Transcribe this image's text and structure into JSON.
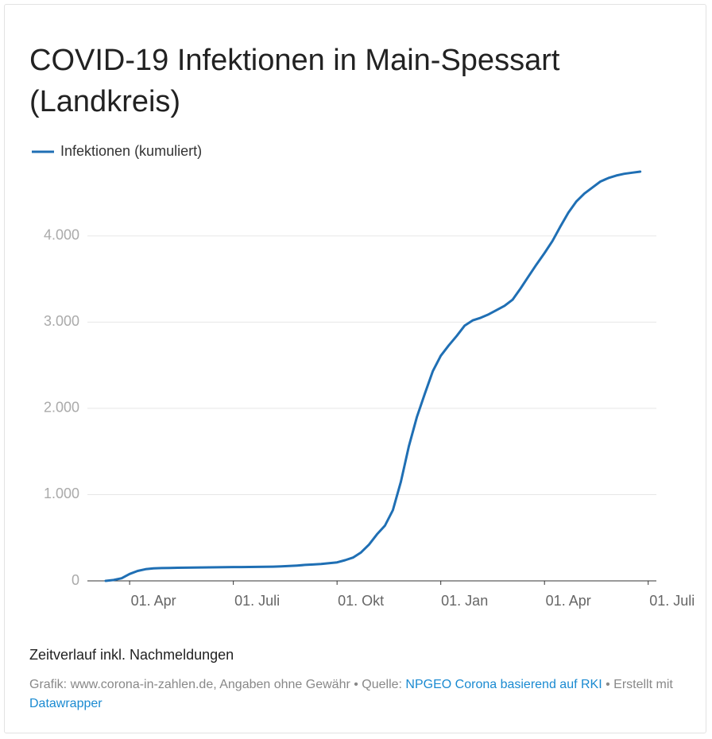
{
  "chart_data": {
    "type": "line",
    "title": "COVID-19 Infektionen in Main-Spessart (Landkreis)",
    "categories": [
      null,
      null,
      null,
      "01. Apr",
      null,
      null,
      null,
      null,
      null,
      null,
      null,
      null,
      null,
      null,
      null,
      null,
      "01. Juli",
      null,
      null,
      null,
      null,
      null,
      null,
      null,
      null,
      null,
      null,
      null,
      null,
      "01. Okt",
      null,
      null,
      null,
      null,
      null,
      null,
      null,
      null,
      null,
      null,
      null,
      null,
      "01. Jan",
      null,
      null,
      null,
      null,
      null,
      null,
      null,
      null,
      null,
      null,
      null,
      null,
      "01. Apr",
      null,
      null,
      null,
      null,
      null,
      null,
      null,
      null,
      null,
      null,
      null,
      null,
      "01. Juli"
    ],
    "series": [
      {
        "name": "Infektionen (kumuliert)",
        "color": "#1f6fb4",
        "values": [
          0,
          10,
          30,
          80,
          115,
          135,
          145,
          148,
          150,
          152,
          153,
          155,
          156,
          157,
          158,
          159,
          160,
          160,
          161,
          162,
          163,
          165,
          168,
          172,
          178,
          185,
          190,
          195,
          205,
          215,
          240,
          270,
          330,
          420,
          540,
          640,
          820,
          1150,
          1560,
          1900,
          2170,
          2430,
          2610,
          2730,
          2840,
          2960,
          3020,
          3050,
          3090,
          3140,
          3190,
          3260,
          3390,
          3530,
          3670,
          3800,
          3940,
          4110,
          4270,
          4400,
          4490,
          4560,
          4630,
          4670,
          4700,
          4720,
          4733,
          4745,
          null
        ]
      }
    ],
    "ylim": [
      0,
      4800
    ],
    "yticks": [
      0,
      {
        "value": 1000,
        "label": "1.000"
      },
      {
        "value": 2000,
        "label": "2.000"
      },
      {
        "value": 3000,
        "label": "3.000"
      },
      {
        "value": 4000,
        "label": "4.000"
      }
    ],
    "grid": true,
    "legend": "top",
    "description": "Zeitverlauf inkl. Nachmeldungen",
    "source": {
      "text1": "Grafik: www.corona-in-zahlen.de, Angaben ohne Gewähr • Quelle: ",
      "link1": "NPGEO Corona basierend auf RKI",
      "text2": " • Erstellt mit ",
      "link2": "Datawrapper"
    }
  }
}
